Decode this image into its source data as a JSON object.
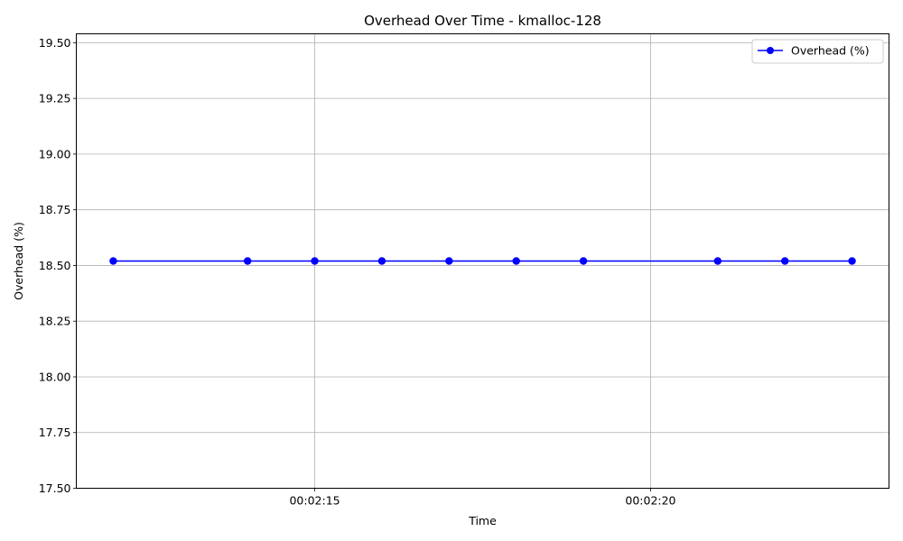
{
  "chart_data": {
    "type": "line",
    "title": "Overhead Over Time - kmalloc-128",
    "xlabel": "Time",
    "ylabel": "Overhead (%)",
    "x": [
      "00:02:12",
      "00:02:14",
      "00:02:15",
      "00:02:16",
      "00:02:17",
      "00:02:18",
      "00:02:19",
      "00:02:21",
      "00:02:22",
      "00:02:23"
    ],
    "xlim": [
      "00:02:11.45",
      "00:02:23.55"
    ],
    "xticks": [
      "00:02:15",
      "00:02:20"
    ],
    "ylim": [
      17.5,
      19.54
    ],
    "yticks": [
      "17.50",
      "17.75",
      "18.00",
      "18.25",
      "18.50",
      "18.75",
      "19.00",
      "19.25",
      "19.50"
    ],
    "series": [
      {
        "name": "Overhead (%)",
        "color": "#0000ff",
        "marker": "circle",
        "values": [
          18.52,
          18.52,
          18.52,
          18.52,
          18.52,
          18.52,
          18.52,
          18.52,
          18.52,
          18.52
        ]
      }
    ],
    "grid": true,
    "legend_position": "top-right"
  }
}
